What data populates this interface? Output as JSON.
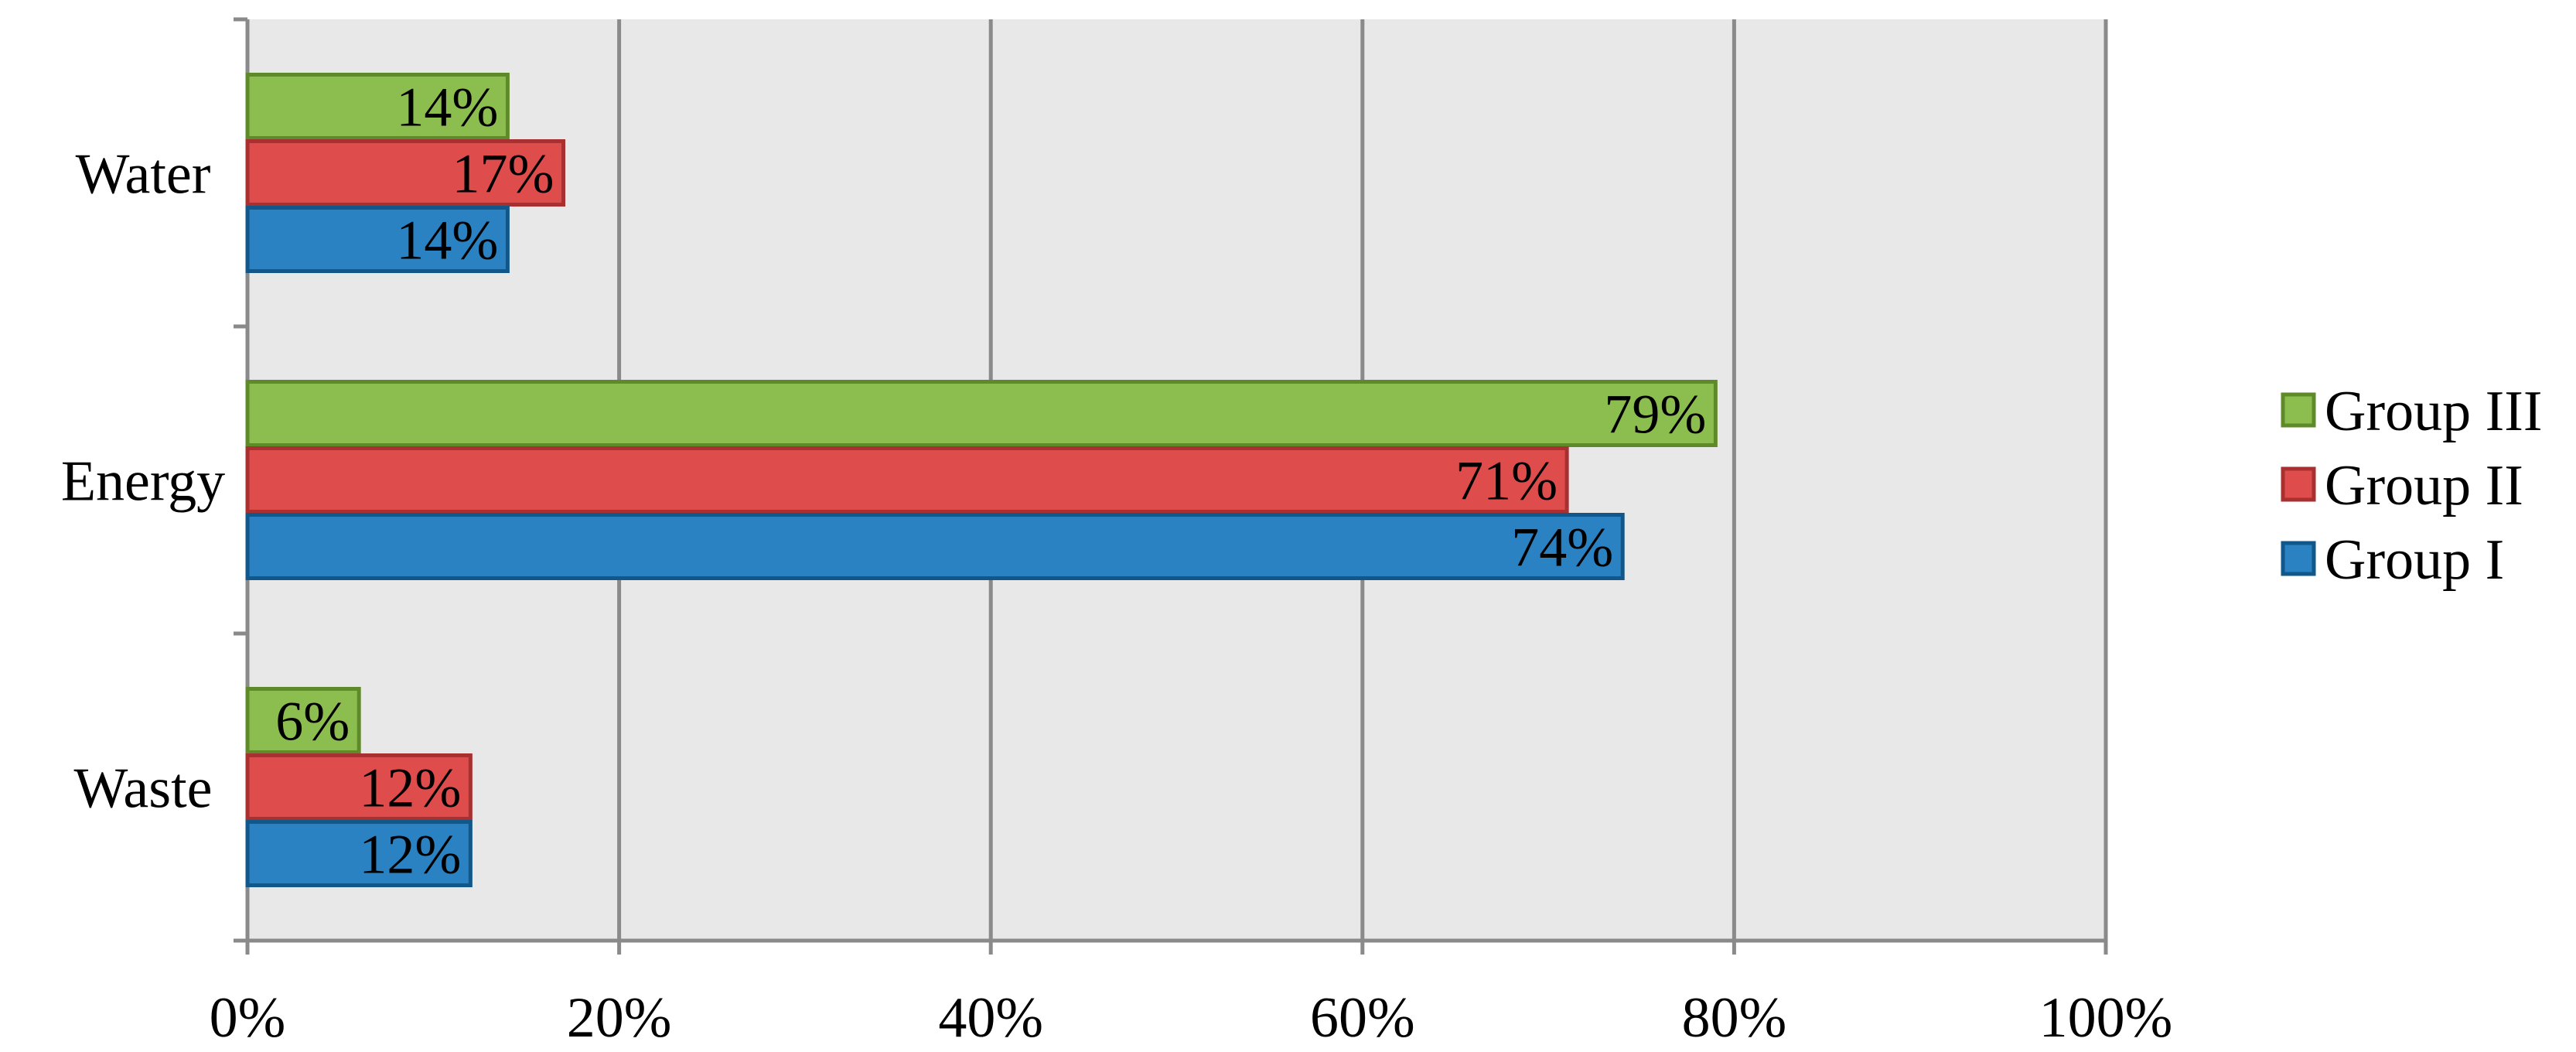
{
  "chart_data": {
    "type": "bar",
    "orientation": "horizontal",
    "categories": [
      "Water",
      "Energy",
      "Waste"
    ],
    "series": [
      {
        "name": "Group III",
        "values": [
          14,
          79,
          6
        ],
        "labels": [
          "14%",
          "79%",
          "6%"
        ],
        "color": "#8cbe4f",
        "stroke": "#5f8a2a"
      },
      {
        "name": "Group II",
        "values": [
          17,
          71,
          12
        ],
        "labels": [
          "17%",
          "71%",
          "12%"
        ],
        "color": "#df4c4c",
        "stroke": "#a83030"
      },
      {
        "name": "Group I",
        "values": [
          14,
          74,
          12
        ],
        "labels": [
          "14%",
          "74%",
          "12%"
        ],
        "color": "#2a82c2",
        "stroke": "#12578a"
      }
    ],
    "xlim": [
      0,
      100
    ],
    "xticks": [
      "0%",
      "20%",
      "40%",
      "60%",
      "80%",
      "100%"
    ],
    "grid": true,
    "plot_background": "#e8e8e8",
    "grid_color": "#8a8a8a",
    "legend_position": "right"
  }
}
